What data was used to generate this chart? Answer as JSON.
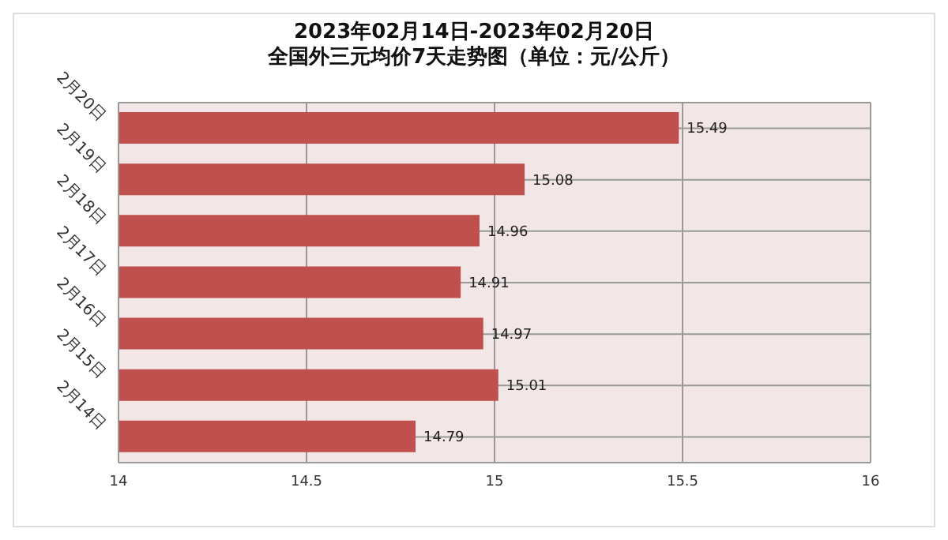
{
  "chart_data": {
    "type": "bar",
    "orientation": "horizontal",
    "title": "2023年02月14日-2023年02月20日",
    "subtitle": "全国外三元均价7天走势图（单位：元/公斤）",
    "categories": [
      "2月20日",
      "2月19日",
      "2月18日",
      "2月17日",
      "2月16日",
      "2月15日",
      "2月14日"
    ],
    "values": [
      15.49,
      15.08,
      14.96,
      14.91,
      14.97,
      15.01,
      14.79
    ],
    "color": "#c0504d",
    "xlim": [
      14,
      16
    ],
    "xticks": [
      14,
      14.5,
      15,
      15.5,
      16
    ],
    "grid": true,
    "data_labels": true
  }
}
